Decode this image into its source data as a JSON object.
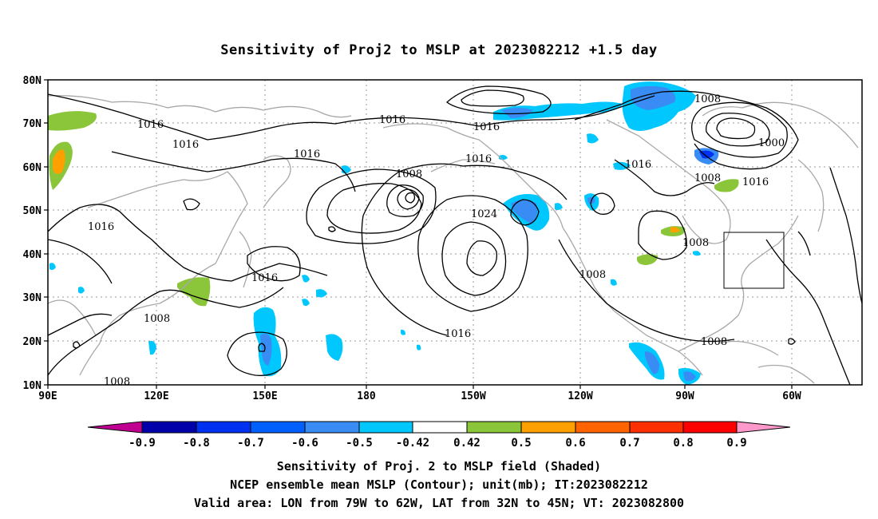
{
  "title": "Sensitivity of Proj2 to MSLP at 2023082212 +1.5 day",
  "lat_labels": [
    "80N",
    "70N",
    "60N",
    "50N",
    "40N",
    "30N",
    "20N",
    "10N"
  ],
  "lon_labels": [
    "90E",
    "120E",
    "150E",
    "180",
    "150W",
    "120W",
    "90W",
    "60W"
  ],
  "contour_labels": [
    "1016",
    "1016",
    "1016",
    "1016",
    "1016",
    "1016",
    "1016",
    "1016",
    "1016",
    "1016",
    "1016",
    "1008",
    "1008",
    "1008",
    "1008",
    "1008",
    "1008",
    "1008",
    "1008",
    "1000",
    "1024"
  ],
  "colorbar": {
    "labels": [
      "-0.9",
      "-0.8",
      "-0.7",
      "-0.6",
      "-0.5",
      "-0.42",
      "0.42",
      "0.5",
      "0.6",
      "0.7",
      "0.8",
      "0.9"
    ],
    "colors": [
      "#c00090",
      "#0000aa",
      "#0030f0",
      "#0060ff",
      "#3a8cf5",
      "#00c8ff",
      "#ffffff",
      "#8ac53a",
      "#ffa000",
      "#ff6400",
      "#ff3000",
      "#ff0000",
      "#ff99cc"
    ]
  },
  "captions": [
    "Sensitivity of Proj. 2 to MSLP field (Shaded)",
    "NCEP ensemble mean MSLP (Contour); unit(mb); IT:2023082212",
    "Valid area: LON from 79W to 62W, LAT from 32N to 45N; VT: 2023082800"
  ]
}
